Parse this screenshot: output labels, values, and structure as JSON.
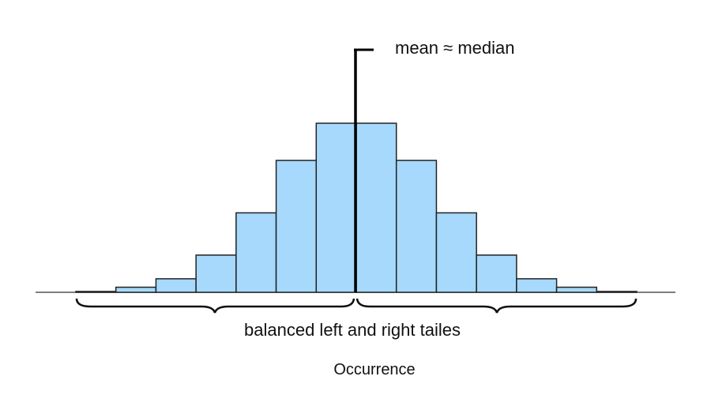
{
  "chart_data": {
    "type": "bar",
    "title": "",
    "xlabel": "Occurrence",
    "ylabel": "",
    "values": [
      0.5,
      3,
      8,
      22,
      47,
      78,
      100,
      100,
      78,
      47,
      22,
      8,
      3,
      0.5
    ],
    "ylim": [
      0,
      100
    ],
    "grid": false,
    "bar_color": "#a6d9fc",
    "bar_edge_color": "#222222",
    "annotations": {
      "center_line": "mean ≈ median",
      "tails": "balanced left and right tailes"
    }
  }
}
